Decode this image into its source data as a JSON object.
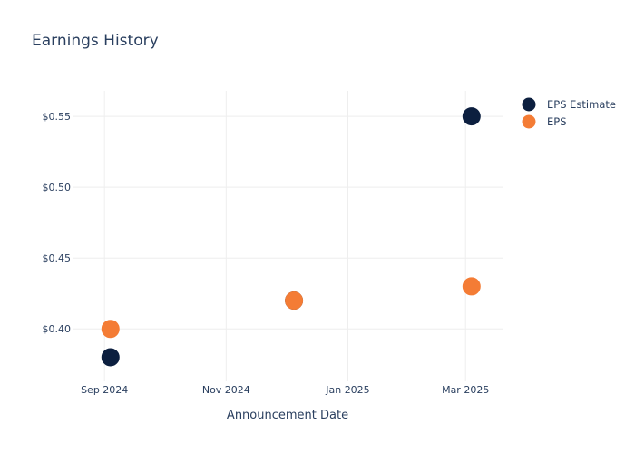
{
  "chart_data": {
    "type": "scatter",
    "title": "Earnings History",
    "xlabel": "Announcement Date",
    "ylabel": "",
    "x_ticks": [
      {
        "date": "2024-09-01",
        "label": "Sep 2024"
      },
      {
        "date": "2024-11-01",
        "label": "Nov 2024"
      },
      {
        "date": "2025-01-01",
        "label": "Jan 2025"
      },
      {
        "date": "2025-03-01",
        "label": "Mar 2025"
      }
    ],
    "y_ticks": [
      {
        "value": 0.4,
        "label": "$0.40"
      },
      {
        "value": 0.45,
        "label": "$0.45"
      },
      {
        "value": 0.5,
        "label": "$0.50"
      },
      {
        "value": 0.55,
        "label": "$0.55"
      }
    ],
    "xlim": [
      "2024-08-16",
      "2025-03-20"
    ],
    "ylim": [
      0.363,
      0.568
    ],
    "grid": true,
    "legend_position": "top-right",
    "series": [
      {
        "name": "EPS Estimate",
        "color": "#0c1f3f",
        "points": [
          {
            "x": "2024-09-04",
            "y": 0.38
          },
          {
            "x": "2024-12-05",
            "y": 0.42
          },
          {
            "x": "2025-03-04",
            "y": 0.55
          }
        ]
      },
      {
        "name": "EPS",
        "color": "#f47c35",
        "points": [
          {
            "x": "2024-09-04",
            "y": 0.4
          },
          {
            "x": "2024-12-05",
            "y": 0.42
          },
          {
            "x": "2025-03-04",
            "y": 0.43
          }
        ]
      }
    ]
  }
}
